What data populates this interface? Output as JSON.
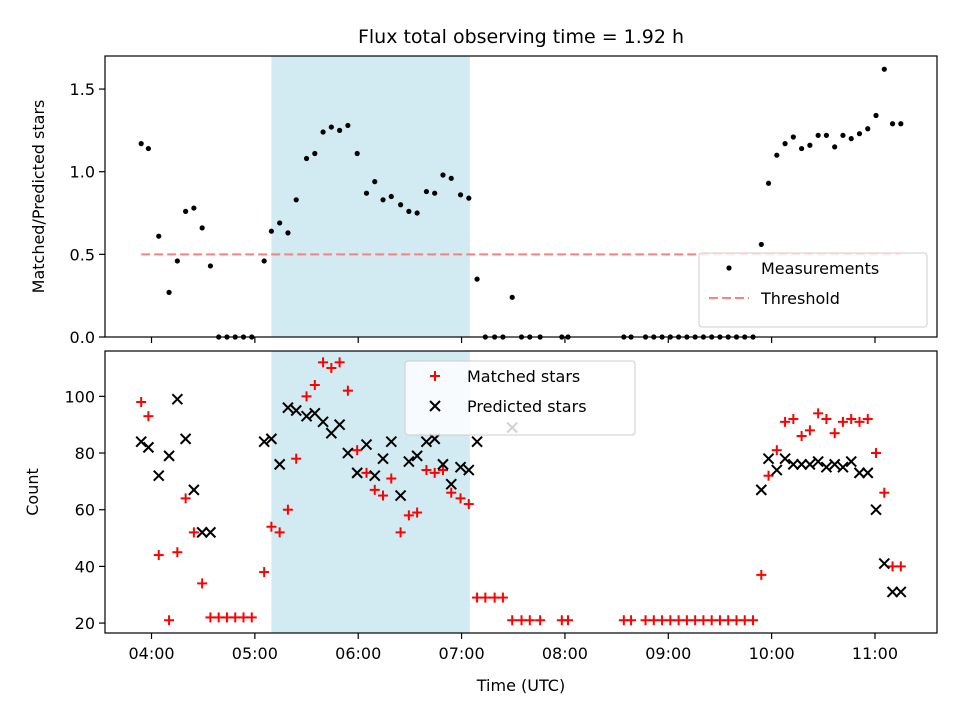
{
  "chart_data": {
    "title": "Flux total observing time = 1.92 h",
    "xlabel": "Time (UTC)",
    "x_unit": "hours (UTC)",
    "xlim": [
      3.55,
      11.6
    ],
    "x_ticks": [
      {
        "value": 4,
        "label": "04:00"
      },
      {
        "value": 5,
        "label": "05:00"
      },
      {
        "value": 6,
        "label": "06:00"
      },
      {
        "value": 7,
        "label": "07:00"
      },
      {
        "value": 8,
        "label": "08:00"
      },
      {
        "value": 9,
        "label": "09:00"
      },
      {
        "value": 10,
        "label": "10:00"
      },
      {
        "value": 11,
        "label": "11:00"
      }
    ],
    "shaded_region": {
      "x": [
        5.16,
        7.08
      ],
      "color": "#add8e6"
    },
    "panels": [
      {
        "type": "scatter",
        "ylabel": "Matched/Predicted stars",
        "ylim": [
          0,
          1.7
        ],
        "y_ticks": [
          "0.0",
          "0.5",
          "1.0",
          "1.5"
        ],
        "y_tick_values": [
          0,
          0.5,
          1.0,
          1.5
        ],
        "legend": {
          "position": "lower right"
        },
        "series": [
          {
            "name": "Measurements",
            "marker": "dot",
            "color": "#000000",
            "x": [
              3.9,
              3.97,
              4.07,
              4.17,
              4.25,
              4.33,
              4.41,
              4.49,
              4.57,
              4.65,
              4.73,
              4.81,
              4.89,
              4.97,
              5.09,
              5.16,
              5.24,
              5.32,
              5.4,
              5.5,
              5.58,
              5.66,
              5.74,
              5.82,
              5.9,
              5.99,
              6.08,
              6.16,
              6.24,
              6.32,
              6.41,
              6.49,
              6.57,
              6.66,
              6.74,
              6.82,
              6.9,
              6.99,
              7.07,
              7.15,
              7.23,
              7.32,
              7.4,
              7.49,
              7.58,
              7.66,
              7.76,
              7.97,
              8.03,
              8.57,
              8.64,
              8.78,
              8.86,
              8.94,
              9.02,
              9.1,
              9.18,
              9.26,
              9.34,
              9.42,
              9.5,
              9.58,
              9.66,
              9.74,
              9.82,
              9.9,
              9.97,
              10.05,
              10.13,
              10.21,
              10.29,
              10.37,
              10.45,
              10.53,
              10.61,
              10.69,
              10.77,
              10.85,
              10.93,
              11.01,
              11.09,
              11.17,
              11.25
            ],
            "y": [
              1.17,
              1.14,
              0.61,
              0.27,
              0.46,
              0.76,
              0.78,
              0.66,
              0.43,
              0.0,
              0.0,
              0.0,
              0.0,
              0.0,
              0.46,
              0.64,
              0.69,
              0.63,
              0.83,
              1.08,
              1.11,
              1.24,
              1.27,
              1.25,
              1.28,
              1.11,
              0.87,
              0.94,
              0.83,
              0.85,
              0.8,
              0.76,
              0.75,
              0.88,
              0.87,
              0.98,
              0.96,
              0.86,
              0.84,
              0.35,
              0.0,
              0.0,
              0.0,
              0.24,
              0.0,
              0.0,
              0.0,
              0.0,
              0.0,
              0.0,
              0.0,
              0.0,
              0.0,
              0.0,
              0.0,
              0.0,
              0.0,
              0.0,
              0.0,
              0.0,
              0.0,
              0.0,
              0.0,
              0.0,
              0.0,
              0.56,
              0.93,
              1.1,
              1.17,
              1.21,
              1.14,
              1.16,
              1.22,
              1.22,
              1.15,
              1.22,
              1.2,
              1.23,
              1.26,
              1.34,
              1.62,
              1.29,
              1.29
            ]
          },
          {
            "name": "Threshold",
            "type": "line",
            "style": "dashed",
            "color": "#ff7f7f",
            "x": [
              3.9,
              11.25
            ],
            "y": [
              0.5,
              0.5
            ]
          }
        ]
      },
      {
        "type": "scatter",
        "ylabel": "Count",
        "ylim": [
          16.5,
          116
        ],
        "y_ticks": [
          "20",
          "40",
          "60",
          "80",
          "100"
        ],
        "y_tick_values": [
          20,
          40,
          60,
          80,
          100
        ],
        "legend": {
          "position": "upper center"
        },
        "series": [
          {
            "name": "Matched stars",
            "marker": "plus",
            "color": "#ff0000",
            "x": [
              3.9,
              3.97,
              4.07,
              4.17,
              4.25,
              4.33,
              4.41,
              4.49,
              4.57,
              4.65,
              4.73,
              4.81,
              4.89,
              4.97,
              5.09,
              5.16,
              5.24,
              5.32,
              5.4,
              5.5,
              5.58,
              5.66,
              5.74,
              5.82,
              5.9,
              5.99,
              6.08,
              6.16,
              6.24,
              6.32,
              6.41,
              6.49,
              6.57,
              6.66,
              6.74,
              6.82,
              6.9,
              6.99,
              7.07,
              7.15,
              7.23,
              7.32,
              7.4,
              7.49,
              7.58,
              7.66,
              7.76,
              7.97,
              8.03,
              8.57,
              8.64,
              8.78,
              8.86,
              8.94,
              9.02,
              9.1,
              9.18,
              9.26,
              9.34,
              9.42,
              9.5,
              9.58,
              9.66,
              9.74,
              9.82,
              9.9,
              9.97,
              10.05,
              10.13,
              10.21,
              10.29,
              10.37,
              10.45,
              10.53,
              10.61,
              10.69,
              10.77,
              10.85,
              10.93,
              11.01,
              11.09,
              11.17,
              11.25
            ],
            "y": [
              98,
              93,
              44,
              21,
              45,
              64,
              52,
              34,
              22,
              22,
              22,
              22,
              22,
              22,
              38,
              54,
              52,
              60,
              78,
              100,
              104,
              112,
              110,
              112,
              102,
              81,
              73,
              67,
              65,
              71,
              52,
              58,
              59,
              74,
              73,
              74,
              66,
              64,
              62,
              29,
              29,
              29,
              29,
              21,
              21,
              21,
              21,
              21,
              21,
              21,
              21,
              21,
              21,
              21,
              21,
              21,
              21,
              21,
              21,
              21,
              21,
              21,
              21,
              21,
              21,
              37,
              72,
              81,
              91,
              92,
              86,
              88,
              94,
              92,
              87,
              91,
              92,
              91,
              92,
              80,
              66,
              40,
              40
            ]
          },
          {
            "name": "Predicted stars",
            "marker": "x",
            "color": "#000000",
            "x": [
              3.9,
              3.97,
              4.07,
              4.17,
              4.25,
              4.33,
              4.41,
              4.49,
              4.57,
              5.09,
              5.16,
              5.24,
              5.32,
              5.4,
              5.5,
              5.58,
              5.66,
              5.74,
              5.82,
              5.9,
              5.99,
              6.08,
              6.16,
              6.24,
              6.32,
              6.41,
              6.49,
              6.57,
              6.66,
              6.74,
              6.82,
              6.9,
              6.99,
              7.07,
              7.15,
              7.49,
              9.9,
              9.97,
              10.05,
              10.13,
              10.21,
              10.29,
              10.37,
              10.45,
              10.53,
              10.61,
              10.69,
              10.77,
              10.85,
              10.93,
              11.01,
              11.09,
              11.17,
              11.25
            ],
            "y": [
              84,
              82,
              72,
              79,
              99,
              85,
              67,
              52,
              52,
              84,
              85,
              76,
              96,
              95,
              93,
              94,
              91,
              87,
              90,
              80,
              73,
              83,
              72,
              78,
              84,
              65,
              77,
              79,
              84,
              85,
              76,
              69,
              75,
              74,
              84,
              89,
              67,
              78,
              74,
              78,
              76,
              76,
              76,
              77,
              75,
              76,
              75,
              77,
              73,
              73,
              60,
              41,
              31,
              31
            ]
          }
        ]
      }
    ]
  }
}
